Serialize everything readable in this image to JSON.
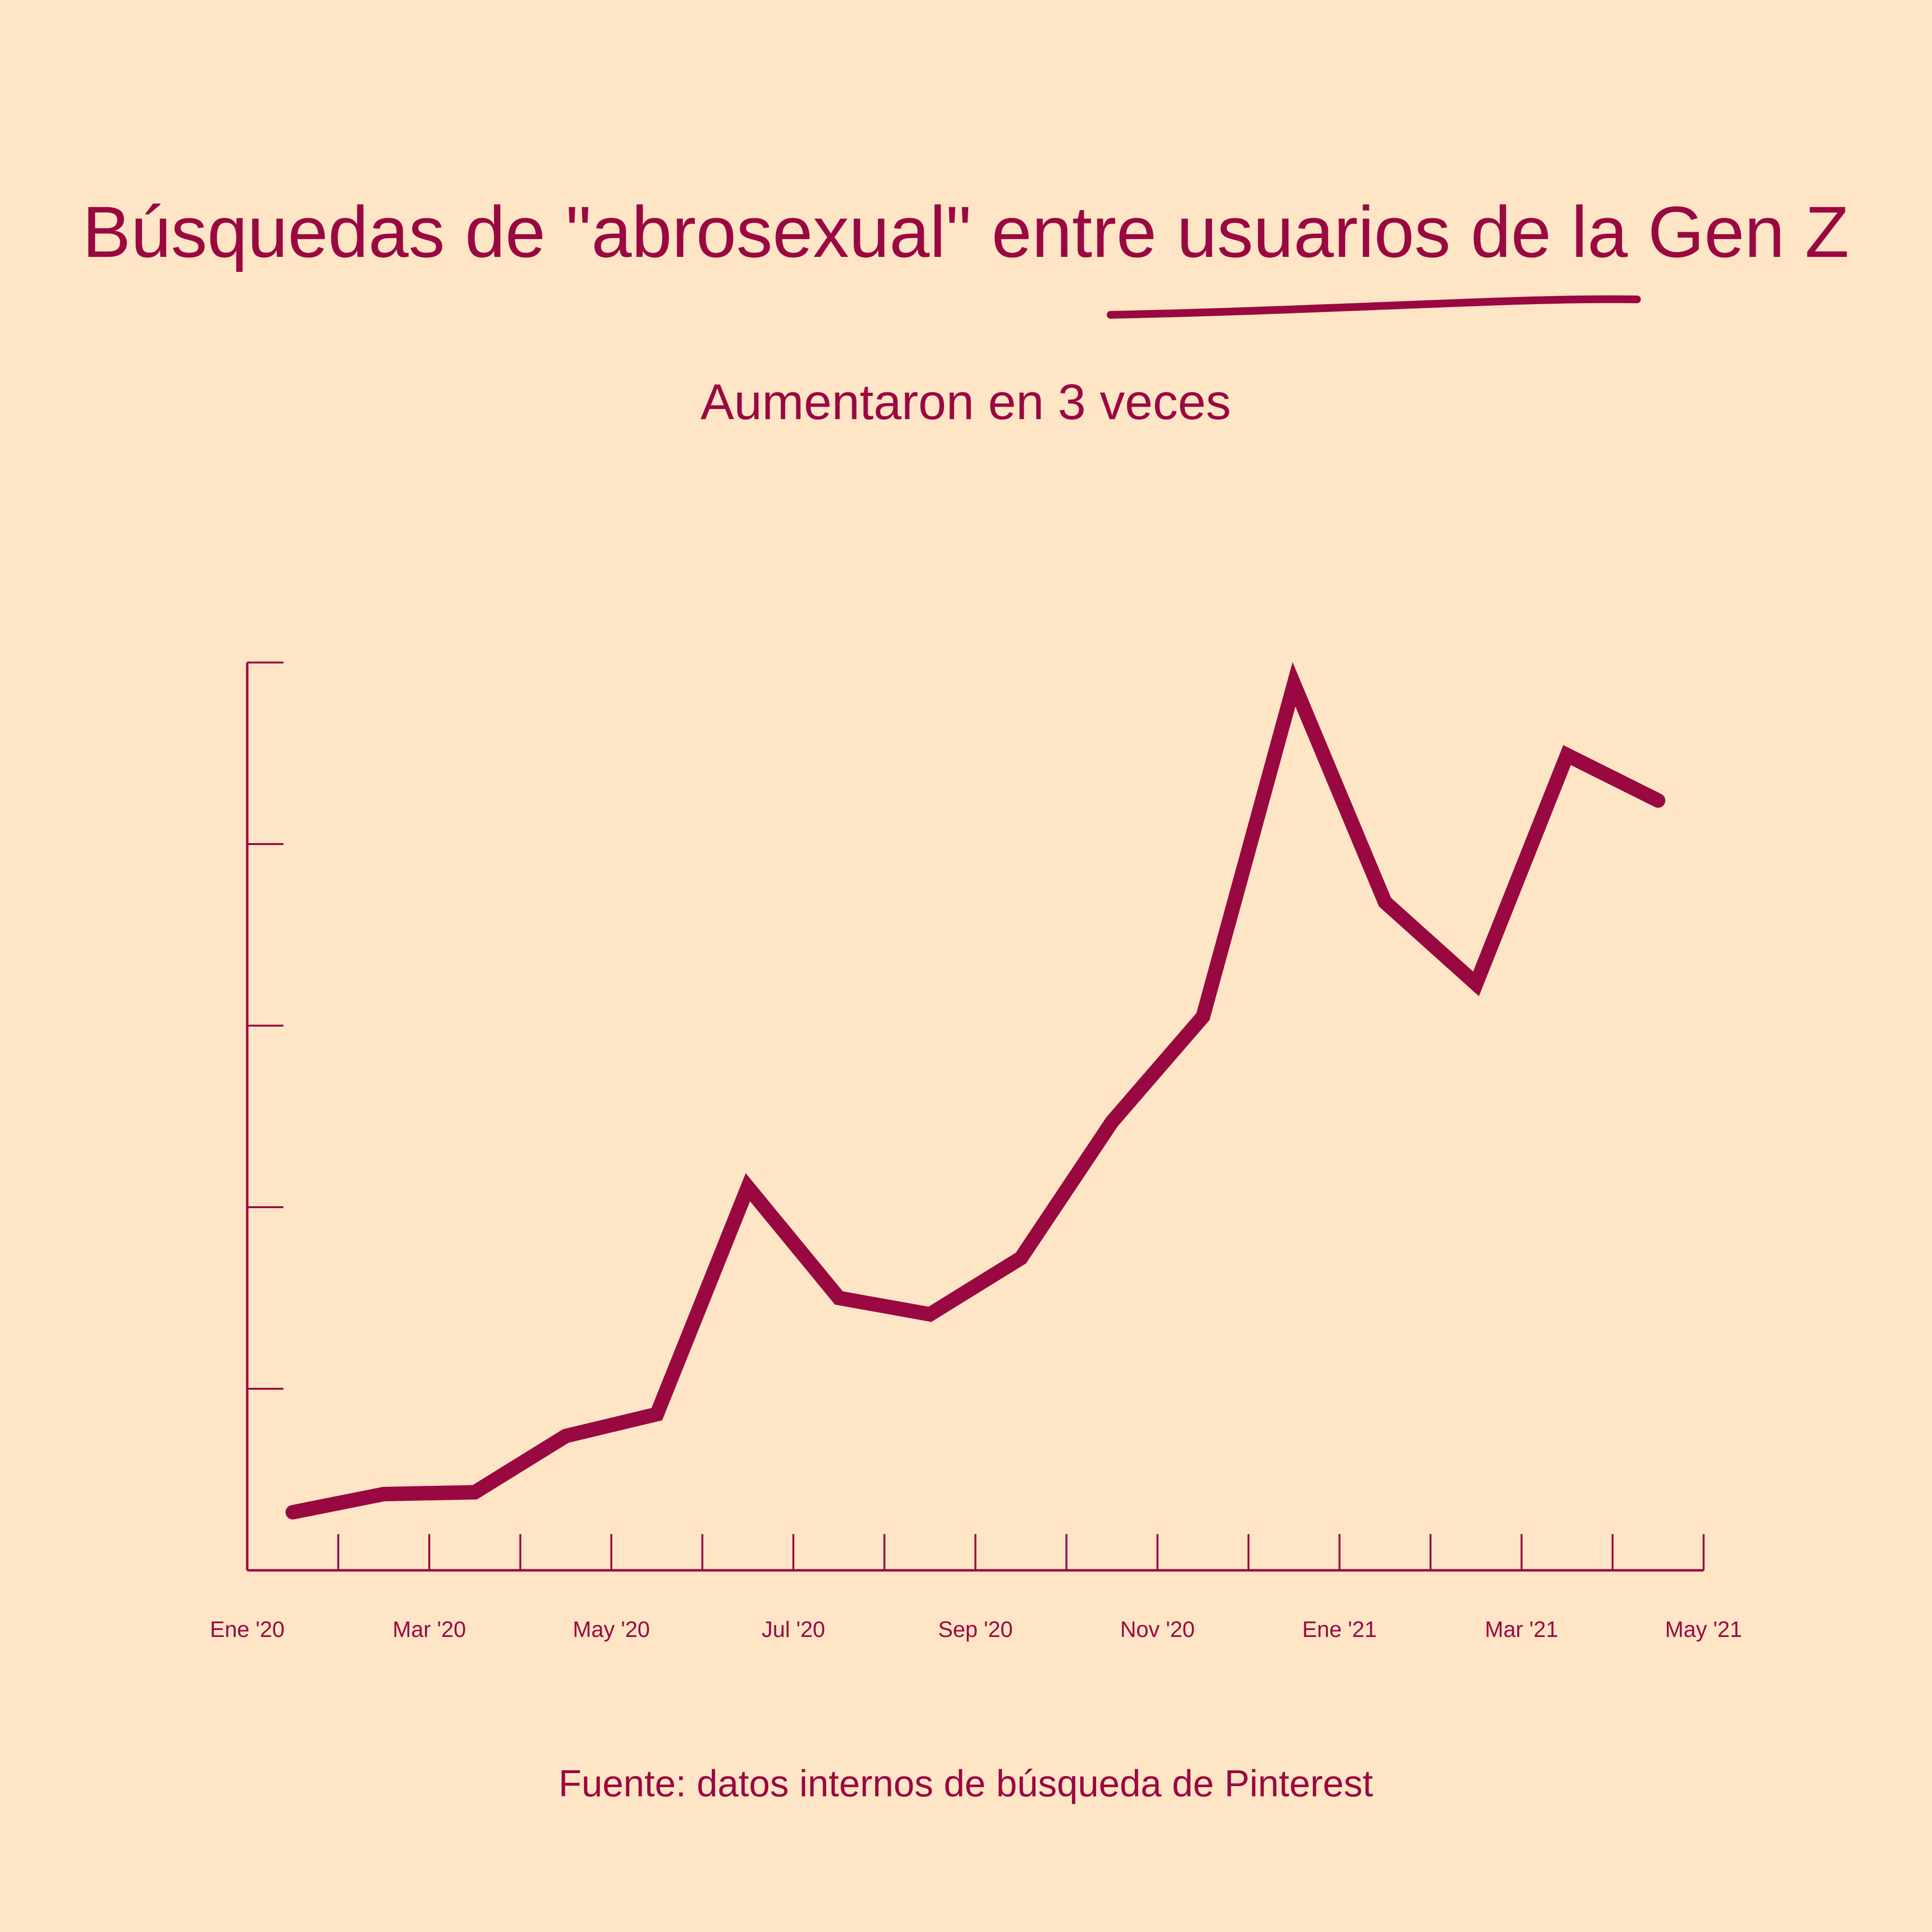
{
  "colors": {
    "background": "#fee5c5",
    "accent": "#9a0842"
  },
  "chart_data": {
    "type": "line",
    "title": "Búsquedas de \"abrosexual\" entre usuarios de la Gen Z",
    "subtitle": "Aumentaron en 3 veces",
    "source": "Fuente: datos internos de búsqueda de Pinterest",
    "xlabel": "",
    "ylabel": "",
    "x_tick_labels": [
      "Ene '20",
      "Mar '20",
      "May '20",
      "Jul '20",
      "Sep '20",
      "Nov '20",
      "Ene '21",
      "Mar '21",
      "May '21"
    ],
    "x_minor_ticks_per_label": 2,
    "y_ticks": [
      0,
      1,
      2,
      3,
      4,
      5
    ],
    "y_tick_labels_shown": false,
    "ylim": [
      0,
      5
    ],
    "grid": false,
    "legend": "none",
    "series": [
      {
        "color": "#9a0842",
        "x": [
          "Ene '20",
          "",
          "Mar '20",
          "",
          "May '20",
          "",
          "Jul '20",
          "",
          "Sep '20",
          "",
          "Nov '20",
          "",
          "Ene '21",
          "",
          "Mar '21",
          "",
          "May '21"
        ],
        "points": [
          {
            "x": 0.5,
            "y": 0.32
          },
          {
            "x": 1.5,
            "y": 0.42
          },
          {
            "x": 2.5,
            "y": 0.43
          },
          {
            "x": 3.5,
            "y": 0.74
          },
          {
            "x": 4.5,
            "y": 0.86
          },
          {
            "x": 5.5,
            "y": 2.11
          },
          {
            "x": 6.5,
            "y": 1.5
          },
          {
            "x": 7.5,
            "y": 1.41
          },
          {
            "x": 8.5,
            "y": 1.72
          },
          {
            "x": 9.5,
            "y": 2.47
          },
          {
            "x": 10.5,
            "y": 3.05
          },
          {
            "x": 11.5,
            "y": 4.88
          },
          {
            "x": 12.5,
            "y": 3.68
          },
          {
            "x": 13.5,
            "y": 3.23
          },
          {
            "x": 14.5,
            "y": 4.49
          },
          {
            "x": 15.5,
            "y": 4.24
          }
        ]
      }
    ]
  }
}
